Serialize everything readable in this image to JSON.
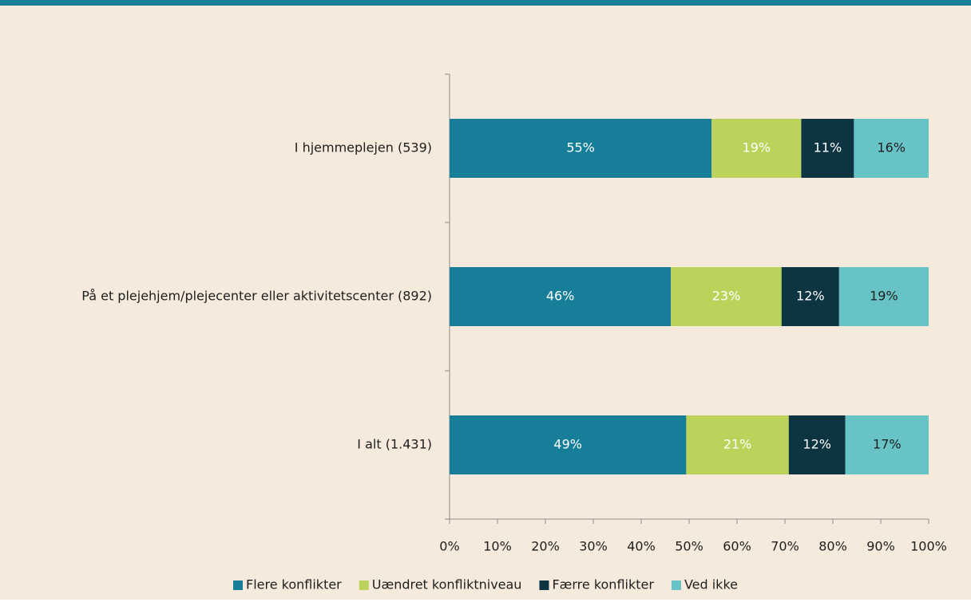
{
  "chart_data": {
    "type": "stacked-barh",
    "categories": [
      "I hjemmeplejen (539)",
      "På et plejehjem/plejecenter eller aktivitetscenter (892)",
      "I alt (1.431)"
    ],
    "series": [
      {
        "name": "Flere konflikter",
        "color": "#177e9a",
        "values": [
          54.7,
          46.2,
          49.4
        ],
        "value_labels": [
          "55%",
          "46%",
          "49%"
        ]
      },
      {
        "name": "Uændret konfliktniveau",
        "color": "#bcd35b",
        "values": [
          18.7,
          23.1,
          21.4
        ],
        "value_labels": [
          "19%",
          "23%",
          "21%"
        ]
      },
      {
        "name": "Færre konflikter",
        "color": "#0d3441",
        "values": [
          11.0,
          12.0,
          11.8
        ],
        "value_labels": [
          "11%",
          "12%",
          "12%"
        ]
      },
      {
        "name": "Ved ikke",
        "color": "#67c3c6",
        "values": [
          15.6,
          18.7,
          17.4
        ],
        "value_labels": [
          "16%",
          "19%",
          "17%"
        ]
      }
    ],
    "xlim": [
      0,
      100
    ],
    "xticks": [
      {
        "value": 0,
        "label": "0%"
      },
      {
        "value": 10,
        "label": "10%"
      },
      {
        "value": 20,
        "label": "20%"
      },
      {
        "value": 30,
        "label": "30%"
      },
      {
        "value": 40,
        "label": "40%"
      },
      {
        "value": 50,
        "label": "50%"
      },
      {
        "value": 60,
        "label": "60%"
      },
      {
        "value": 70,
        "label": "70%"
      },
      {
        "value": 80,
        "label": "80%"
      },
      {
        "value": 90,
        "label": "90%"
      },
      {
        "value": 100,
        "label": "100%"
      }
    ],
    "legend": "bottom"
  }
}
